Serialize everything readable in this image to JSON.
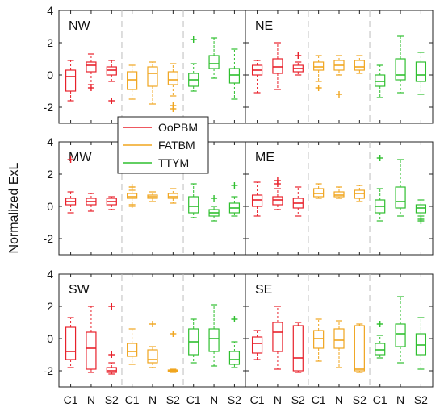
{
  "chart_data": {
    "type": "boxplot",
    "ylabel": "Normalized ExL",
    "ylim": [
      -3,
      4
    ],
    "yticks": [
      -2,
      0,
      2,
      4
    ],
    "categories": [
      "C1",
      "N",
      "S2",
      "C1",
      "N",
      "S2",
      "C1",
      "N",
      "S2"
    ],
    "series_colors": {
      "OoPBM": "#e8212b",
      "FATBM": "#f0a51e",
      "TTYM": "#2fbf2f"
    },
    "legend": {
      "entries": [
        "OoPBM",
        "FATBM",
        "TTYM"
      ],
      "placement": "center"
    },
    "panels": [
      {
        "title": "NW",
        "boxes": [
          {
            "series": "OoPBM",
            "category": "C1",
            "whislo": -1.6,
            "q1": -1.0,
            "med": -0.1,
            "q3": 0.3,
            "whishi": 0.9,
            "outliers": []
          },
          {
            "series": "OoPBM",
            "category": "N",
            "whislo": -0.6,
            "q1": 0.2,
            "med": 0.6,
            "q3": 0.8,
            "whishi": 1.3,
            "outliers": [
              -0.8
            ]
          },
          {
            "series": "OoPBM",
            "category": "S2",
            "whislo": -0.4,
            "q1": 0.0,
            "med": 0.3,
            "q3": 0.5,
            "whishi": 0.9,
            "outliers": [
              -1.6
            ]
          },
          {
            "series": "FATBM",
            "category": "C1",
            "whislo": -1.5,
            "q1": -0.9,
            "med": -0.3,
            "q3": 0.2,
            "whishi": 0.6,
            "outliers": []
          },
          {
            "series": "FATBM",
            "category": "N",
            "whislo": -1.8,
            "q1": -0.7,
            "med": 0.1,
            "q3": 0.5,
            "whishi": 0.8,
            "outliers": []
          },
          {
            "series": "FATBM",
            "category": "S2",
            "whislo": -1.3,
            "q1": -0.6,
            "med": -0.3,
            "q3": 0.2,
            "whishi": 0.7,
            "outliers": [
              -1.9,
              -2.1
            ]
          },
          {
            "series": "TTYM",
            "category": "C1",
            "whislo": -1.0,
            "q1": -0.7,
            "med": -0.3,
            "q3": 0.1,
            "whishi": 0.7,
            "outliers": [
              2.2
            ]
          },
          {
            "series": "TTYM",
            "category": "N",
            "whislo": -0.2,
            "q1": 0.4,
            "med": 0.7,
            "q3": 1.2,
            "whishi": 2.3,
            "outliers": []
          },
          {
            "series": "TTYM",
            "category": "S2",
            "whislo": -1.5,
            "q1": -0.5,
            "med": 0.0,
            "q3": 0.4,
            "whishi": 1.6,
            "outliers": []
          }
        ]
      },
      {
        "title": "NE",
        "boxes": [
          {
            "series": "OoPBM",
            "category": "C1",
            "whislo": -1.1,
            "q1": 0.0,
            "med": 0.3,
            "q3": 0.6,
            "whishi": 0.9,
            "outliers": []
          },
          {
            "series": "OoPBM",
            "category": "N",
            "whislo": -0.9,
            "q1": 0.1,
            "med": 0.5,
            "q3": 1.0,
            "whishi": 2.0,
            "outliers": []
          },
          {
            "series": "OoPBM",
            "category": "S2",
            "whislo": 0.0,
            "q1": 0.2,
            "med": 0.4,
            "q3": 0.6,
            "whishi": 0.8,
            "outliers": [
              1.2
            ]
          },
          {
            "series": "FATBM",
            "category": "C1",
            "whislo": -0.4,
            "q1": 0.3,
            "med": 0.5,
            "q3": 0.8,
            "whishi": 1.2,
            "outliers": [
              -0.8
            ]
          },
          {
            "series": "FATBM",
            "category": "N",
            "whislo": 0.0,
            "q1": 0.3,
            "med": 0.6,
            "q3": 0.9,
            "whishi": 1.2,
            "outliers": [
              -1.2
            ]
          },
          {
            "series": "FATBM",
            "category": "S2",
            "whislo": 0.1,
            "q1": 0.3,
            "med": 0.5,
            "q3": 0.9,
            "whishi": 1.2,
            "outliers": []
          },
          {
            "series": "TTYM",
            "category": "C1",
            "whislo": -1.4,
            "q1": -0.7,
            "med": -0.4,
            "q3": 0.0,
            "whishi": 0.6,
            "outliers": []
          },
          {
            "series": "TTYM",
            "category": "N",
            "whislo": -1.1,
            "q1": -0.3,
            "med": 0.0,
            "q3": 1.0,
            "whishi": 2.4,
            "outliers": []
          },
          {
            "series": "TTYM",
            "category": "S2",
            "whislo": -1.2,
            "q1": -0.4,
            "med": 0.0,
            "q3": 0.8,
            "whishi": 1.4,
            "outliers": []
          }
        ]
      },
      {
        "title": "MW",
        "boxes": [
          {
            "series": "OoPBM",
            "category": "C1",
            "whislo": -0.4,
            "q1": 0.1,
            "med": 0.3,
            "q3": 0.5,
            "whishi": 0.9,
            "outliers": [
              2.9
            ]
          },
          {
            "series": "OoPBM",
            "category": "N",
            "whislo": -0.3,
            "q1": 0.1,
            "med": 0.3,
            "q3": 0.5,
            "whishi": 0.8,
            "outliers": []
          },
          {
            "series": "OoPBM",
            "category": "S2",
            "whislo": -0.2,
            "q1": 0.1,
            "med": 0.3,
            "q3": 0.5,
            "whishi": 0.6,
            "outliers": []
          },
          {
            "series": "FATBM",
            "category": "C1",
            "whislo": 0.0,
            "q1": 0.5,
            "med": 0.6,
            "q3": 0.8,
            "whishi": 1.0,
            "outliers": [
              1.2,
              0.1
            ]
          },
          {
            "series": "FATBM",
            "category": "N",
            "whislo": 0.3,
            "q1": 0.5,
            "med": 0.6,
            "q3": 0.7,
            "whishi": 0.9,
            "outliers": []
          },
          {
            "series": "FATBM",
            "category": "S2",
            "whislo": 0.2,
            "q1": 0.5,
            "med": 0.6,
            "q3": 0.8,
            "whishi": 1.1,
            "outliers": []
          },
          {
            "series": "TTYM",
            "category": "C1",
            "whislo": -0.7,
            "q1": -0.4,
            "med": 0.0,
            "q3": 0.6,
            "whishi": 1.4,
            "outliers": []
          },
          {
            "series": "TTYM",
            "category": "N",
            "whislo": -0.9,
            "q1": -0.6,
            "med": -0.4,
            "q3": -0.2,
            "whishi": 0.0,
            "outliers": [
              0.5
            ]
          },
          {
            "series": "TTYM",
            "category": "S2",
            "whislo": -0.6,
            "q1": -0.4,
            "med": -0.1,
            "q3": 0.2,
            "whishi": 0.6,
            "outliers": [
              1.3
            ]
          }
        ]
      },
      {
        "title": "ME",
        "boxes": [
          {
            "series": "OoPBM",
            "category": "C1",
            "whislo": -0.6,
            "q1": 0.0,
            "med": 0.4,
            "q3": 0.7,
            "whishi": 1.5,
            "outliers": []
          },
          {
            "series": "OoPBM",
            "category": "N",
            "whislo": -0.2,
            "q1": 0.1,
            "med": 0.4,
            "q3": 0.6,
            "whishi": 1.1,
            "outliers": [
              1.6,
              1.4
            ]
          },
          {
            "series": "OoPBM",
            "category": "S2",
            "whislo": -0.6,
            "q1": -0.1,
            "med": 0.2,
            "q3": 0.5,
            "whishi": 1.2,
            "outliers": []
          },
          {
            "series": "FATBM",
            "category": "C1",
            "whislo": 0.5,
            "q1": 0.6,
            "med": 0.8,
            "q3": 1.1,
            "whishi": 1.4,
            "outliers": []
          },
          {
            "series": "FATBM",
            "category": "N",
            "whislo": 0.5,
            "q1": 0.6,
            "med": 0.7,
            "q3": 0.9,
            "whishi": 1.2,
            "outliers": []
          },
          {
            "series": "FATBM",
            "category": "S2",
            "whislo": 0.3,
            "q1": 0.5,
            "med": 0.8,
            "q3": 1.0,
            "whishi": 1.3,
            "outliers": []
          },
          {
            "series": "TTYM",
            "category": "C1",
            "whislo": -0.9,
            "q1": -0.4,
            "med": 0.0,
            "q3": 0.4,
            "whishi": 1.1,
            "outliers": [
              3.0
            ]
          },
          {
            "series": "TTYM",
            "category": "N",
            "whislo": -0.6,
            "q1": -0.1,
            "med": 0.3,
            "q3": 1.2,
            "whishi": 2.9,
            "outliers": []
          },
          {
            "series": "TTYM",
            "category": "S2",
            "whislo": -0.6,
            "q1": -0.4,
            "med": -0.1,
            "q3": 0.1,
            "whishi": 0.4,
            "outliers": [
              -0.8,
              -0.9
            ]
          }
        ]
      },
      {
        "title": "SW",
        "boxes": [
          {
            "series": "OoPBM",
            "category": "C1",
            "whislo": -1.8,
            "q1": -1.3,
            "med": -0.8,
            "q3": 0.7,
            "whishi": 1.3,
            "outliers": []
          },
          {
            "series": "OoPBM",
            "category": "N",
            "whislo": -2.1,
            "q1": -1.9,
            "med": -0.6,
            "q3": 0.4,
            "whishi": 2.0,
            "outliers": []
          },
          {
            "series": "OoPBM",
            "category": "S2",
            "whislo": -2.2,
            "q1": -2.1,
            "med": -2.0,
            "q3": -1.8,
            "whishi": -1.5,
            "outliers": [
              2.0,
              -1.0
            ]
          },
          {
            "series": "FATBM",
            "category": "C1",
            "whislo": -1.6,
            "q1": -1.1,
            "med": -0.8,
            "q3": -0.3,
            "whishi": 0.6,
            "outliers": []
          },
          {
            "series": "FATBM",
            "category": "N",
            "whislo": -1.8,
            "q1": -1.5,
            "med": -1.3,
            "q3": -0.7,
            "whishi": -0.5,
            "outliers": [
              0.9
            ]
          },
          {
            "series": "FATBM",
            "category": "S2",
            "whislo": -2.1,
            "q1": -2.05,
            "med": -2.0,
            "q3": -1.95,
            "whishi": -1.9,
            "outliers": [
              0.3
            ]
          },
          {
            "series": "TTYM",
            "category": "C1",
            "whislo": -1.5,
            "q1": -1.0,
            "med": -0.2,
            "q3": 0.6,
            "whishi": 1.2,
            "outliers": []
          },
          {
            "series": "TTYM",
            "category": "N",
            "whislo": -1.7,
            "q1": -0.8,
            "med": 0.0,
            "q3": 0.6,
            "whishi": 2.1,
            "outliers": []
          },
          {
            "series": "TTYM",
            "category": "S2",
            "whislo": -1.8,
            "q1": -1.6,
            "med": -1.3,
            "q3": -0.8,
            "whishi": -0.2,
            "outliers": [
              1.2
            ]
          }
        ]
      },
      {
        "title": "SE",
        "boxes": [
          {
            "series": "OoPBM",
            "category": "C1",
            "whislo": -1.3,
            "q1": -0.9,
            "med": -0.3,
            "q3": 0.1,
            "whishi": 0.5,
            "outliers": []
          },
          {
            "series": "OoPBM",
            "category": "N",
            "whislo": -1.9,
            "q1": -0.8,
            "med": 0.4,
            "q3": 1.0,
            "whishi": 2.0,
            "outliers": []
          },
          {
            "series": "OoPBM",
            "category": "S2",
            "whislo": -2.1,
            "q1": -2.0,
            "med": -1.2,
            "q3": 0.8,
            "whishi": 1.0,
            "outliers": []
          },
          {
            "series": "FATBM",
            "category": "C1",
            "whislo": -1.4,
            "q1": -0.6,
            "med": 0.0,
            "q3": 0.5,
            "whishi": 1.2,
            "outliers": []
          },
          {
            "series": "FATBM",
            "category": "N",
            "whislo": -1.8,
            "q1": -0.6,
            "med": -0.1,
            "q3": 0.6,
            "whishi": 1.1,
            "outliers": []
          },
          {
            "series": "FATBM",
            "category": "S2",
            "whislo": -2.1,
            "q1": -2.0,
            "med": -1.9,
            "q3": 0.8,
            "whishi": 0.9,
            "outliers": []
          },
          {
            "series": "TTYM",
            "category": "C1",
            "whislo": -1.2,
            "q1": -1.0,
            "med": -0.7,
            "q3": -0.3,
            "whishi": 0.2,
            "outliers": [
              0.9
            ]
          },
          {
            "series": "TTYM",
            "category": "N",
            "whislo": -1.5,
            "q1": -0.5,
            "med": 0.3,
            "q3": 0.9,
            "whishi": 2.6,
            "outliers": []
          },
          {
            "series": "TTYM",
            "category": "S2",
            "whislo": -1.9,
            "q1": -1.0,
            "med": -0.4,
            "q3": 0.3,
            "whishi": 1.3,
            "outliers": []
          }
        ]
      }
    ]
  }
}
